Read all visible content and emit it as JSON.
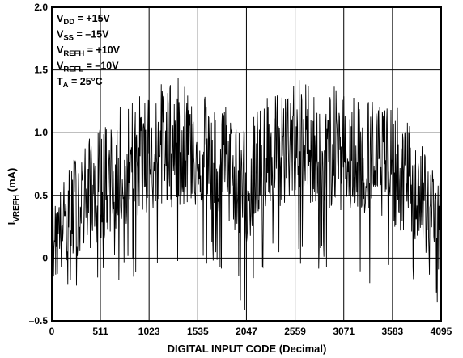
{
  "chart_data": {
    "type": "line",
    "xlabel": "DIGITAL INPUT CODE (Decimal)",
    "ylabel": {
      "main": "I",
      "sub": "VREFH",
      "unit": " (mA)"
    },
    "xlim": [
      0,
      4095
    ],
    "ylim": [
      -0.5,
      2.0
    ],
    "xticks": [
      0,
      511,
      1023,
      1535,
      2047,
      2559,
      3071,
      3583,
      4095
    ],
    "xtick_labels": [
      "0",
      "511",
      "1023",
      "1535",
      "2047",
      "2559",
      "3071",
      "3583",
      "4095"
    ],
    "yticks": [
      -0.5,
      0,
      0.5,
      1.0,
      1.5,
      2.0
    ],
    "ytick_labels": [
      "–0.5",
      "0",
      "0.5",
      "1.0",
      "1.5",
      "2.0"
    ],
    "grid": true,
    "annotations": [
      {
        "main": "V",
        "sub": "DD",
        "rest": " = +15V"
      },
      {
        "main": "V",
        "sub": "SS",
        "rest": " = –15V"
      },
      {
        "main": "V",
        "sub": "REFH",
        "rest": " = +10V"
      },
      {
        "main": "V",
        "sub": "REFL",
        "rest": " = –10V"
      },
      {
        "main": "T",
        "sub": "A",
        "rest": " = 25°C"
      }
    ],
    "series": [
      {
        "envelope_x": [
          0,
          256,
          511,
          767,
          1023,
          1279,
          1535,
          1791,
          2047,
          2303,
          2559,
          2815,
          3071,
          3327,
          3583,
          3839,
          4095
        ],
        "upper": [
          0.4,
          0.85,
          1.05,
          1.25,
          1.35,
          1.45,
          1.4,
          1.3,
          1.05,
          1.35,
          1.45,
          1.4,
          1.35,
          1.3,
          1.25,
          1.0,
          0.6
        ],
        "center": [
          0.2,
          0.45,
          0.55,
          0.7,
          0.8,
          0.85,
          0.85,
          0.75,
          0.55,
          0.8,
          0.9,
          0.85,
          0.8,
          0.75,
          0.7,
          0.55,
          0.3
        ],
        "lower": [
          -0.45,
          -0.3,
          -0.25,
          -0.2,
          -0.15,
          -0.1,
          -0.1,
          -0.1,
          -0.45,
          -0.1,
          -0.05,
          -0.1,
          -0.15,
          -0.2,
          -0.25,
          -0.3,
          -0.45
        ],
        "style": "dense-noise",
        "color": "#000000"
      }
    ]
  }
}
